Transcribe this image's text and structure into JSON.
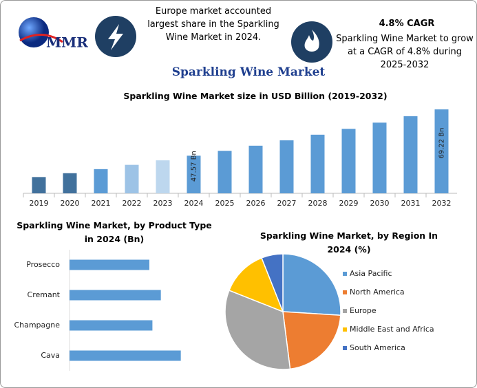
{
  "header": {
    "logo": "MMR",
    "note1": "Europe market accounted largest share in the Sparkling Wine Market in 2024.",
    "cagr_title": "4.8% CAGR",
    "note2": "Sparkling Wine Market to grow at a CAGR of 4.8% during 2025-2032",
    "title": "Sparkling Wine Market"
  },
  "chart_data": [
    {
      "type": "bar",
      "title": "Sparkling Wine Market size in USD Billion (2019-2032)",
      "categories": [
        "2019",
        "2020",
        "2021",
        "2022",
        "2023",
        "2024",
        "2025",
        "2026",
        "2027",
        "2028",
        "2029",
        "2030",
        "2031",
        "2032"
      ],
      "values": [
        37.6,
        39.4,
        41.3,
        43.3,
        45.4,
        47.57,
        49.85,
        52.24,
        54.75,
        57.38,
        60.13,
        63.02,
        66.04,
        69.22
      ],
      "value_labels": [
        null,
        null,
        null,
        null,
        null,
        "47.57 Bn",
        null,
        null,
        null,
        null,
        null,
        null,
        null,
        "69.22 Bn"
      ],
      "colors": [
        "#41719c",
        "#41719c",
        "#5b9bd5",
        "#9dc3e6",
        "#bdd7ee",
        "#5b9bd5",
        "#5b9bd5",
        "#5b9bd5",
        "#5b9bd5",
        "#5b9bd5",
        "#5b9bd5",
        "#5b9bd5",
        "#5b9bd5",
        "#5b9bd5"
      ],
      "ylim": [
        30,
        70.5
      ]
    },
    {
      "type": "hbar",
      "title": "Sparkling Wine Market, by Product Type in 2024 (Bn)",
      "categories": [
        "Prosecco",
        "Cremant",
        "Champagne",
        "Cava"
      ],
      "values": [
        10.4,
        11.9,
        10.8,
        14.5
      ],
      "color": "#5b9bd5",
      "xlim": [
        0,
        20
      ]
    },
    {
      "type": "pie",
      "title": "Sparkling Wine Market, by Region In 2024 (%)",
      "categories": [
        "Asia Pacific",
        "North America",
        "Europe",
        "Middle East and Africa",
        "South America"
      ],
      "values": [
        26,
        22,
        33,
        13,
        6
      ],
      "colors": [
        "#5b9bd5",
        "#ed7d31",
        "#a5a5a5",
        "#ffc000",
        "#4472c4"
      ],
      "legend": "right"
    }
  ]
}
